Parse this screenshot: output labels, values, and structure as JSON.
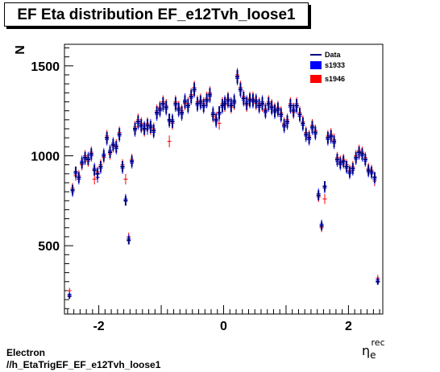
{
  "chart_data": {
    "type": "scatter",
    "title": "EF Eta distribution EF_e12Tvh_loose1",
    "xlabel": "η",
    "xlabel_sub": "e",
    "xlabel_sup": "rec",
    "ylabel": "N",
    "xlim": [
      -2.55,
      2.55
    ],
    "ylim": [
      120,
      1620
    ],
    "xticks": [
      -2,
      0,
      2
    ],
    "yticks": [
      500,
      1000,
      1500
    ],
    "legend_position": "top-right",
    "series": [
      {
        "name": "Data",
        "color": "#000080",
        "x": [
          -2.47,
          -2.42,
          -2.37,
          -2.32,
          -2.27,
          -2.22,
          -2.17,
          -2.12,
          -2.07,
          -2.02,
          -1.97,
          -1.92,
          -1.87,
          -1.82,
          -1.77,
          -1.72,
          -1.67,
          -1.62,
          -1.57,
          -1.52,
          -1.47,
          -1.42,
          -1.37,
          -1.32,
          -1.27,
          -1.22,
          -1.17,
          -1.12,
          -1.07,
          -1.02,
          -0.97,
          -0.92,
          -0.87,
          -0.82,
          -0.77,
          -0.72,
          -0.67,
          -0.62,
          -0.57,
          -0.52,
          -0.47,
          -0.42,
          -0.37,
          -0.32,
          -0.27,
          -0.22,
          -0.17,
          -0.12,
          -0.07,
          -0.02,
          0.02,
          0.07,
          0.12,
          0.17,
          0.22,
          0.27,
          0.32,
          0.37,
          0.42,
          0.47,
          0.52,
          0.57,
          0.62,
          0.67,
          0.72,
          0.77,
          0.82,
          0.87,
          0.92,
          0.97,
          1.02,
          1.07,
          1.12,
          1.17,
          1.22,
          1.27,
          1.32,
          1.37,
          1.42,
          1.47,
          1.52,
          1.57,
          1.62,
          1.67,
          1.72,
          1.77,
          1.82,
          1.87,
          1.92,
          1.97,
          2.02,
          2.07,
          2.12,
          2.17,
          2.22,
          2.27,
          2.32,
          2.37,
          2.42,
          2.47
        ],
        "y": [
          220,
          810,
          910,
          880,
          960,
          990,
          980,
          1010,
          920,
          900,
          940,
          1000,
          1100,
          1020,
          1060,
          1050,
          1120,
          940,
          750,
          530,
          970,
          1150,
          1190,
          1170,
          1150,
          1170,
          1160,
          1140,
          1240,
          1260,
          1290,
          1270,
          1200,
          1190,
          1290,
          1260,
          1240,
          1300,
          1280,
          1330,
          1370,
          1290,
          1300,
          1280,
          1310,
          1340,
          1230,
          1200,
          1240,
          1280,
          1290,
          1310,
          1280,
          1300,
          1440,
          1370,
          1320,
          1290,
          1310,
          1310,
          1300,
          1280,
          1290,
          1250,
          1290,
          1270,
          1250,
          1260,
          1230,
          1170,
          1190,
          1280,
          1250,
          1280,
          1230,
          1180,
          1120,
          1100,
          1160,
          1130,
          780,
          610,
          830,
          1100,
          1110,
          1080,
          980,
          960,
          970,
          940,
          910,
          930,
          990,
          1020,
          1010,
          980,
          920,
          910,
          880,
          300
        ]
      },
      {
        "name": "s1933",
        "color": "#0000ff",
        "x": [
          -2.47,
          -2.42,
          -2.37,
          -2.32,
          -2.27,
          -2.22,
          -2.17,
          -2.12,
          -2.07,
          -2.02,
          -1.97,
          -1.92,
          -1.87,
          -1.82,
          -1.77,
          -1.72,
          -1.67,
          -1.62,
          -1.57,
          -1.52,
          -1.47,
          -1.42,
          -1.37,
          -1.32,
          -1.27,
          -1.22,
          -1.17,
          -1.12,
          -1.07,
          -1.02,
          -0.97,
          -0.92,
          -0.87,
          -0.82,
          -0.77,
          -0.72,
          -0.67,
          -0.62,
          -0.57,
          -0.52,
          -0.47,
          -0.42,
          -0.37,
          -0.32,
          -0.27,
          -0.22,
          -0.17,
          -0.12,
          -0.07,
          -0.02,
          0.02,
          0.07,
          0.12,
          0.17,
          0.22,
          0.27,
          0.32,
          0.37,
          0.42,
          0.47,
          0.52,
          0.57,
          0.62,
          0.67,
          0.72,
          0.77,
          0.82,
          0.87,
          0.92,
          0.97,
          1.02,
          1.07,
          1.12,
          1.17,
          1.22,
          1.27,
          1.32,
          1.37,
          1.42,
          1.47,
          1.52,
          1.57,
          1.62,
          1.67,
          1.72,
          1.77,
          1.82,
          1.87,
          1.92,
          1.97,
          2.02,
          2.07,
          2.12,
          2.17,
          2.22,
          2.27,
          2.32,
          2.37,
          2.42,
          2.47
        ],
        "y": [
          230,
          800,
          900,
          870,
          970,
          980,
          990,
          1000,
          930,
          880,
          930,
          1010,
          1090,
          1030,
          1070,
          1040,
          1110,
          930,
          760,
          540,
          960,
          1140,
          1180,
          1160,
          1160,
          1150,
          1170,
          1130,
          1230,
          1250,
          1280,
          1260,
          1190,
          1200,
          1280,
          1250,
          1230,
          1310,
          1270,
          1320,
          1360,
          1280,
          1290,
          1270,
          1300,
          1330,
          1240,
          1190,
          1230,
          1270,
          1300,
          1300,
          1290,
          1310,
          1430,
          1360,
          1310,
          1300,
          1300,
          1300,
          1310,
          1270,
          1300,
          1240,
          1280,
          1260,
          1240,
          1250,
          1220,
          1160,
          1180,
          1270,
          1260,
          1270,
          1220,
          1170,
          1110,
          1090,
          1150,
          1120,
          790,
          620,
          820,
          1090,
          1100,
          1070,
          970,
          950,
          960,
          930,
          900,
          920,
          980,
          1010,
          1000,
          970,
          910,
          900,
          870,
          310
        ]
      },
      {
        "name": "s1946",
        "color": "#ff0000",
        "x": [
          -2.47,
          -2.42,
          -2.37,
          -2.32,
          -2.27,
          -2.22,
          -2.17,
          -2.12,
          -2.07,
          -2.02,
          -1.97,
          -1.92,
          -1.87,
          -1.82,
          -1.77,
          -1.72,
          -1.67,
          -1.62,
          -1.57,
          -1.52,
          -1.47,
          -1.42,
          -1.37,
          -1.32,
          -1.27,
          -1.22,
          -1.17,
          -1.12,
          -1.07,
          -1.02,
          -0.97,
          -0.92,
          -0.87,
          -0.82,
          -0.77,
          -0.72,
          -0.67,
          -0.62,
          -0.57,
          -0.52,
          -0.47,
          -0.42,
          -0.37,
          -0.32,
          -0.27,
          -0.22,
          -0.17,
          -0.12,
          -0.07,
          -0.02,
          0.02,
          0.07,
          0.12,
          0.17,
          0.22,
          0.27,
          0.32,
          0.37,
          0.42,
          0.47,
          0.52,
          0.57,
          0.62,
          0.67,
          0.72,
          0.77,
          0.82,
          0.87,
          0.92,
          0.97,
          1.02,
          1.07,
          1.12,
          1.17,
          1.22,
          1.27,
          1.32,
          1.37,
          1.42,
          1.47,
          1.52,
          1.57,
          1.62,
          1.67,
          1.72,
          1.77,
          1.82,
          1.87,
          1.92,
          1.97,
          2.02,
          2.07,
          2.12,
          2.17,
          2.22,
          2.27,
          2.32,
          2.37,
          2.42,
          2.47
        ],
        "y": [
          250,
          820,
          890,
          890,
          950,
          1000,
          970,
          1020,
          870,
          910,
          950,
          990,
          1110,
          1010,
          1050,
          1060,
          1130,
          950,
          870,
          550,
          980,
          1160,
          1200,
          1180,
          1140,
          1180,
          1150,
          1150,
          1250,
          1270,
          1300,
          1280,
          1080,
          1180,
          1300,
          1270,
          1250,
          1290,
          1290,
          1340,
          1380,
          1300,
          1310,
          1290,
          1320,
          1350,
          1220,
          1210,
          1180,
          1290,
          1280,
          1320,
          1270,
          1290,
          1450,
          1380,
          1330,
          1280,
          1320,
          1320,
          1290,
          1290,
          1280,
          1260,
          1300,
          1280,
          1260,
          1270,
          1240,
          1180,
          1200,
          1290,
          1240,
          1290,
          1240,
          1190,
          1130,
          1110,
          1170,
          1140,
          770,
          600,
          760,
          1110,
          1120,
          1090,
          990,
          970,
          980,
          950,
          920,
          940,
          1000,
          1030,
          1020,
          990,
          930,
          920,
          860,
          320
        ]
      }
    ]
  },
  "footer": {
    "line1": "Electron",
    "line2": "//h_EtaTrigEF_EF_e12Tvh_loose1"
  }
}
